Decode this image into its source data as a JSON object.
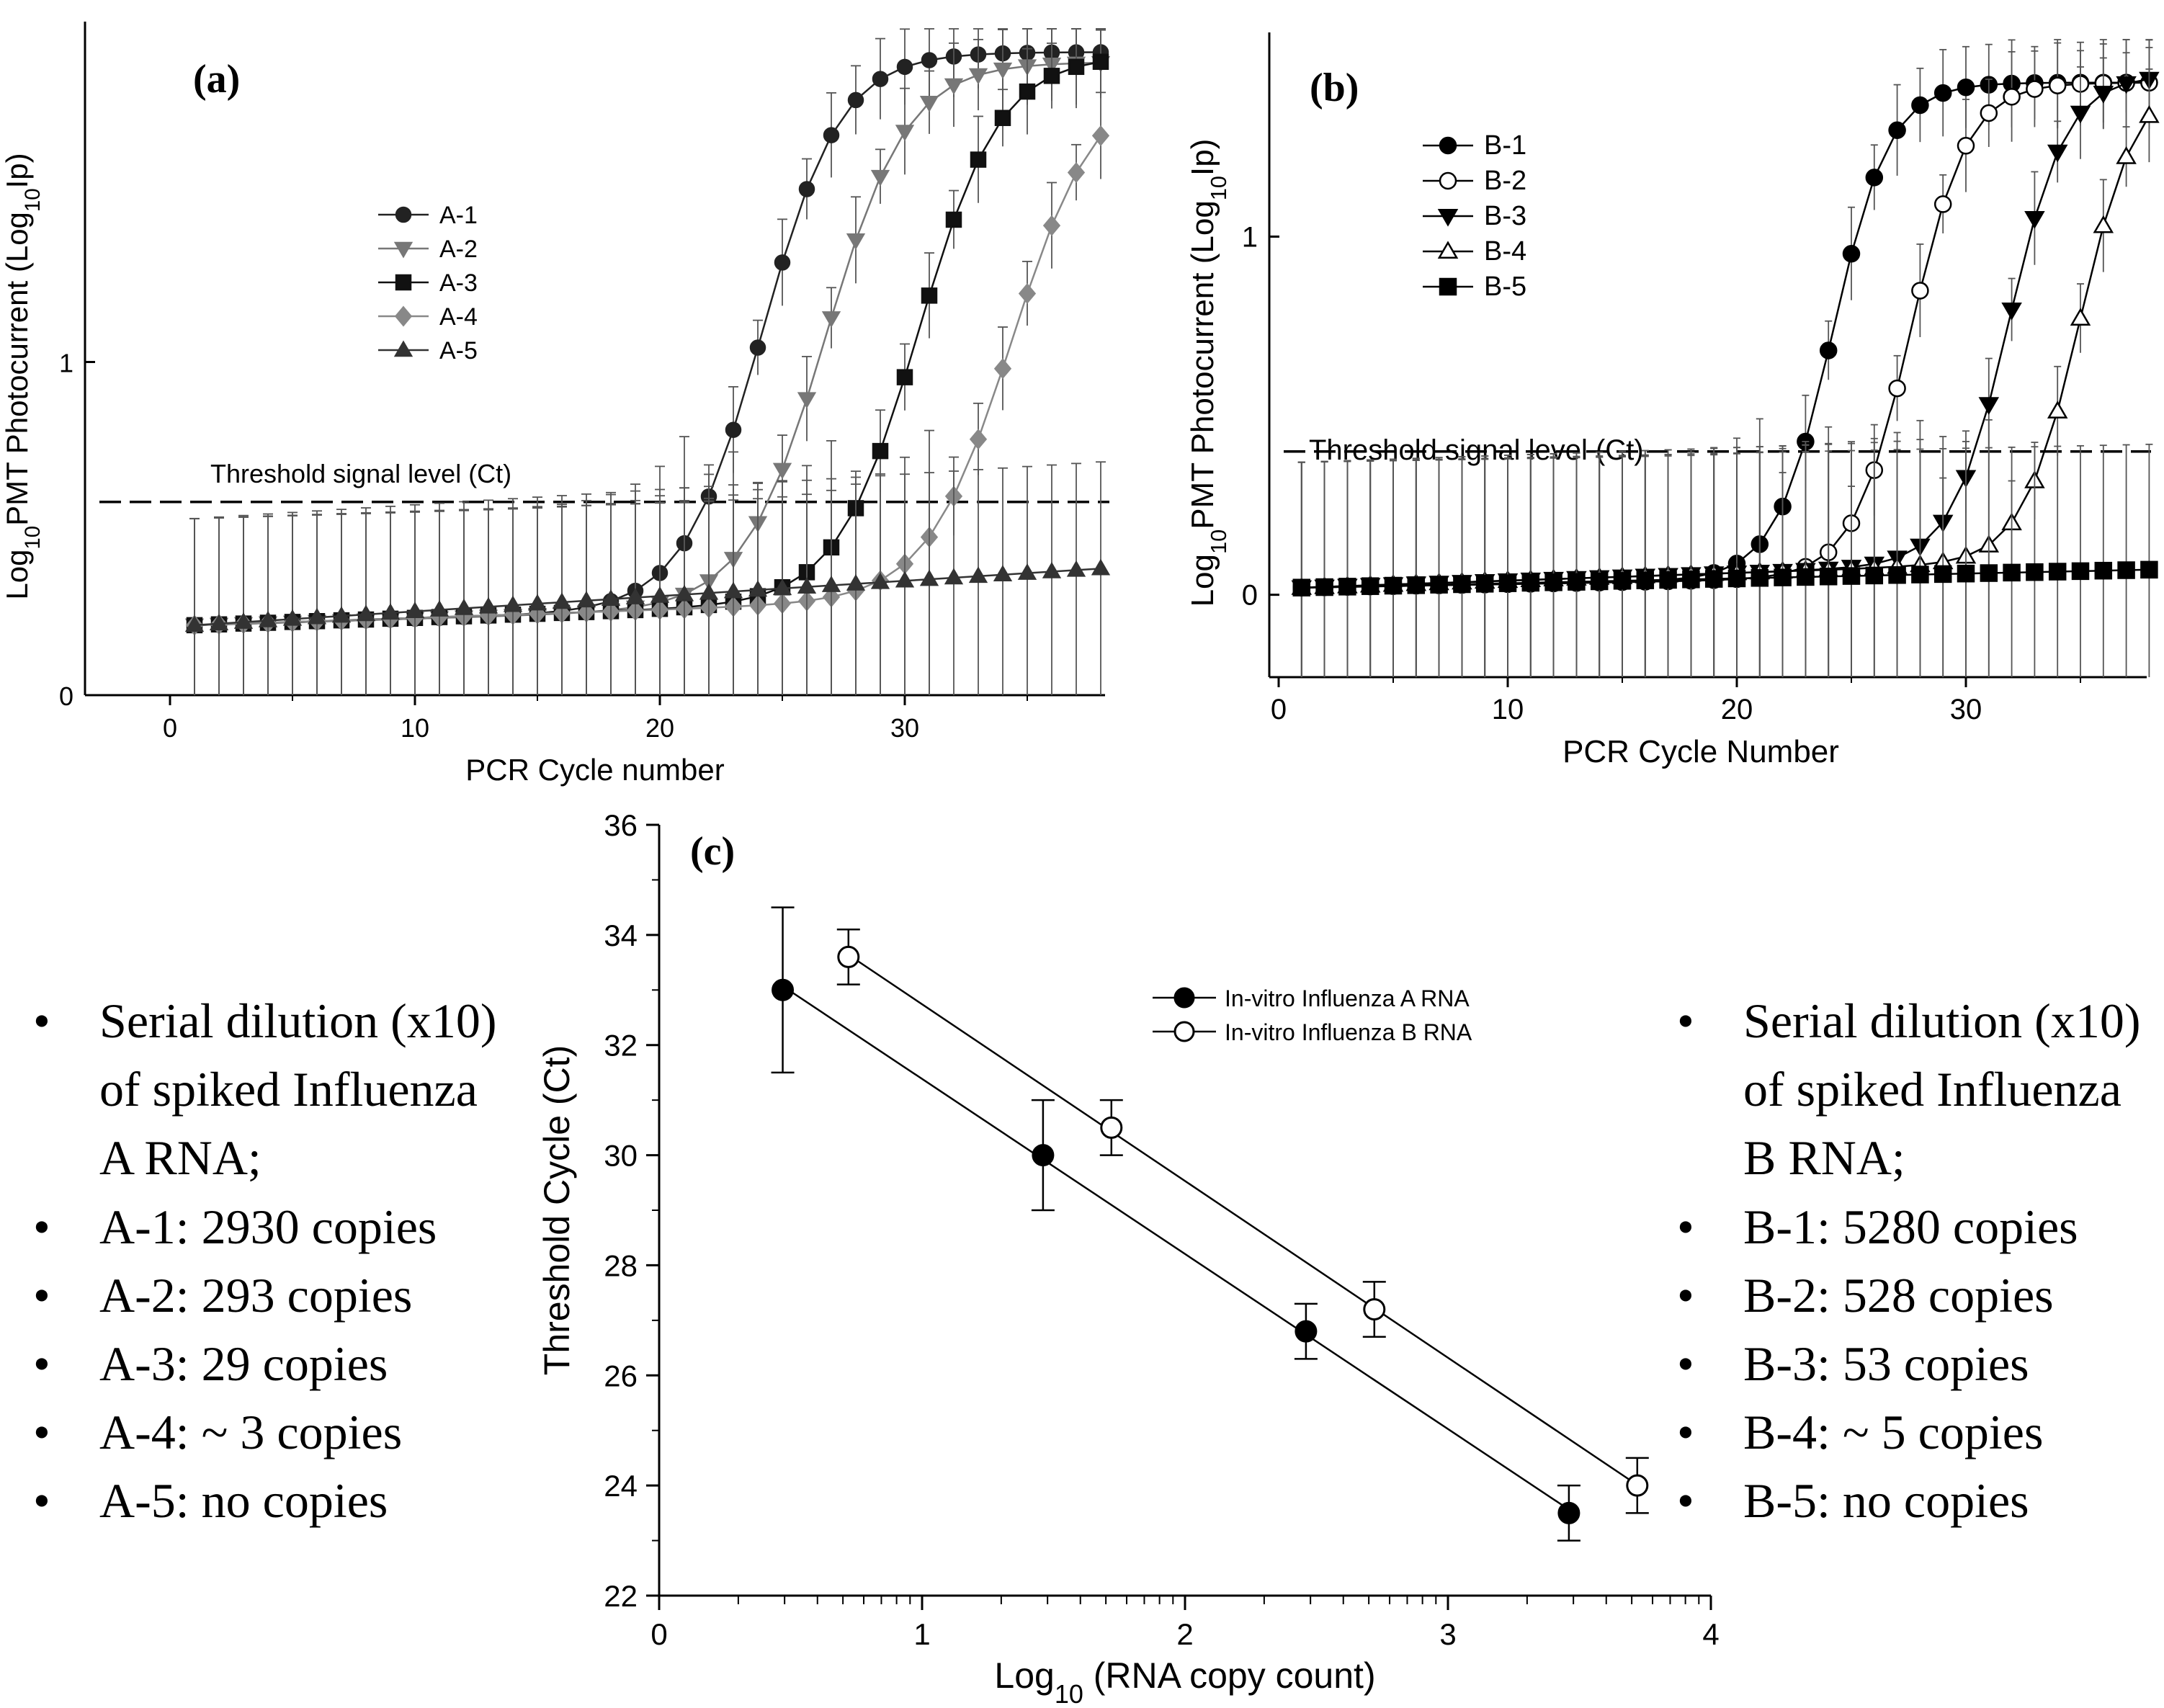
{
  "chart_data": [
    {
      "id": "a",
      "type": "line",
      "title": "(a)",
      "xlabel": "PCR Cycle number",
      "ylabel": "Log10PMT Photocurrent (Log10Ip)",
      "xlim": [
        0,
        38
      ],
      "ylim": [
        0,
        2
      ],
      "xticks": [
        0,
        10,
        20,
        30
      ],
      "yticks": [
        0,
        1
      ],
      "threshold": {
        "label": "Threshold signal level (Ct)",
        "y": 0.58
      },
      "legend": "center-left",
      "x_start": 1,
      "x_end": 38,
      "series": [
        {
          "name": "A-1",
          "marker": "circle",
          "filled": true,
          "color": "#222222",
          "ct": 24.2,
          "base0": 0.21,
          "base1": 0.29,
          "top": 1.93,
          "slope": 0.62
        },
        {
          "name": "A-2",
          "marker": "triangle-down",
          "filled": true,
          "color": "#777777",
          "ct": 26.8,
          "base0": 0.21,
          "base1": 0.29,
          "top": 1.9,
          "slope": 0.6
        },
        {
          "name": "A-3",
          "marker": "square",
          "filled": true,
          "color": "#111111",
          "ct": 30.6,
          "base0": 0.21,
          "base1": 0.3,
          "top": 1.92,
          "slope": 0.6
        },
        {
          "name": "A-4",
          "marker": "diamond",
          "filled": true,
          "color": "#888888",
          "ct": 34.4,
          "base0": 0.21,
          "base1": 0.3,
          "top": 1.85,
          "slope": 0.58
        },
        {
          "name": "A-5",
          "marker": "triangle-up",
          "filled": true,
          "color": "#333333",
          "ct": null,
          "base0": 0.21,
          "base1": 0.38,
          "top": 0.38,
          "slope": 0
        }
      ]
    },
    {
      "id": "b",
      "type": "line",
      "title": "(b)",
      "xlabel": "PCR Cycle Number",
      "ylabel": "Log10PMT Photocurrent (Log10Ip)",
      "xlim": [
        0,
        38
      ],
      "ylim": [
        -0.23,
        1.55
      ],
      "xticks": [
        0,
        10,
        20,
        30
      ],
      "yticks": [
        0,
        1
      ],
      "threshold": {
        "label": "Threshold signal level (Ct)",
        "y": 0.4
      },
      "legend": "top-left",
      "x_start": 1,
      "x_end": 38,
      "series": [
        {
          "name": "B-1",
          "marker": "circle",
          "filled": true,
          "color": "#000000",
          "ct": 24.2,
          "base0": 0.02,
          "base1": 0.06,
          "top": 1.43,
          "slope": 0.8
        },
        {
          "name": "B-2",
          "marker": "circle",
          "filled": false,
          "color": "#000000",
          "ct": 27.6,
          "base0": 0.02,
          "base1": 0.06,
          "top": 1.43,
          "slope": 0.8
        },
        {
          "name": "B-3",
          "marker": "triangle-down",
          "filled": true,
          "color": "#000000",
          "ct": 31.9,
          "base0": 0.02,
          "base1": 0.1,
          "top": 1.45,
          "slope": 0.8
        },
        {
          "name": "B-4",
          "marker": "triangle-up",
          "filled": false,
          "color": "#000000",
          "ct": 35.0,
          "base0": 0.02,
          "base1": 0.1,
          "top": 1.45,
          "slope": 0.8
        },
        {
          "name": "B-5",
          "marker": "square",
          "filled": true,
          "color": "#000000",
          "ct": null,
          "base0": 0.02,
          "base1": 0.07,
          "top": 0.07,
          "slope": 0
        }
      ]
    },
    {
      "id": "c",
      "type": "scatter",
      "title": "(c)",
      "xlabel": "Log10 (RNA copy count)",
      "ylabel": "Threshold Cycle (Ct)",
      "xlim": [
        0,
        4
      ],
      "ylim": [
        22,
        36
      ],
      "xticks": [
        0,
        1,
        2,
        3,
        4
      ],
      "yticks": [
        22,
        24,
        26,
        28,
        30,
        32,
        34,
        36
      ],
      "legend": "top-right",
      "series": [
        {
          "name": "In-vitro Influenza A RNA",
          "filled": true,
          "x": [
            0.47,
            1.46,
            2.46,
            3.46
          ],
          "y": [
            33.0,
            30.0,
            26.8,
            23.5
          ],
          "err": [
            1.5,
            1.0,
            0.5,
            0.5
          ]
        },
        {
          "name": "In-vitro Influenza B RNA",
          "filled": false,
          "x": [
            0.72,
            1.72,
            2.72,
            3.72
          ],
          "y": [
            33.6,
            30.5,
            27.2,
            24.0
          ],
          "err": [
            0.5,
            0.5,
            0.5,
            0.5
          ]
        }
      ]
    }
  ],
  "notes": {
    "a": [
      "Serial dilution (x10) of spiked Influenza A RNA;",
      "A-1: 2930 copies",
      "A-2: 293 copies",
      "A-3: 29 copies",
      "A-4: ~ 3 copies",
      "A-5: no copies"
    ],
    "b": [
      "Serial dilution (x10) of spiked Influenza B RNA;",
      "B-1: 5280 copies",
      "B-2: 528 copies",
      "B-3: 53 copies",
      "B-4: ~ 5 copies",
      "B-5: no copies"
    ]
  }
}
